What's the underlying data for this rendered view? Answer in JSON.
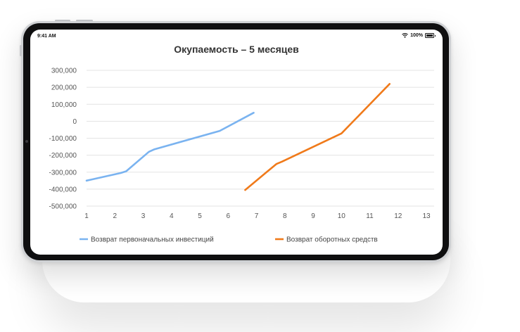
{
  "status_bar": {
    "time": "9:41 AM",
    "battery": "100%"
  },
  "chart_data": {
    "type": "line",
    "title": "Окупаемость – 5 месяцев",
    "xlabel": "",
    "ylabel": "",
    "x_ticks": [
      1,
      2,
      3,
      4,
      5,
      6,
      7,
      8,
      9,
      10,
      11,
      12,
      13
    ],
    "x_tick_labels": [
      "1",
      "2",
      "3",
      "4",
      "5",
      "6",
      "7",
      "8",
      "9",
      "10",
      "11",
      "12",
      "13"
    ],
    "y_ticks": [
      300000,
      200000,
      100000,
      0,
      -100000,
      -200000,
      -300000,
      -400000,
      -500000
    ],
    "y_tick_labels": [
      "300,000",
      "200,000",
      "100,000",
      "0",
      "-100,000",
      "-200,000",
      "-300,000",
      "-400,000",
      "-500,000"
    ],
    "xlim": [
      1,
      13
    ],
    "ylim": [
      -500000,
      300000
    ],
    "grid": true,
    "legend_position": "bottom",
    "series": [
      {
        "name": "Возврат первоначальных инвестиций",
        "color": "#7ab3f0",
        "points": [
          [
            1,
            -350000
          ],
          [
            2.2,
            -305000
          ],
          [
            2.4,
            -295000
          ],
          [
            3.2,
            -180000
          ],
          [
            3.4,
            -165000
          ],
          [
            5.7,
            -57000
          ],
          [
            6.9,
            50000
          ]
        ]
      },
      {
        "name": "Возврат оборотных средств",
        "color": "#f07a1a",
        "points": [
          [
            6.6,
            -405000
          ],
          [
            7.7,
            -252000
          ],
          [
            7.9,
            -238000
          ],
          [
            10,
            -72000
          ],
          [
            11.7,
            220000
          ]
        ]
      }
    ]
  }
}
